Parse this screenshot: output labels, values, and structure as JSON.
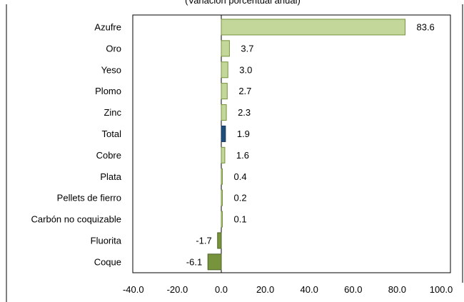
{
  "chart_data": {
    "type": "bar",
    "orientation": "horizontal",
    "title": "(Variación porcentual anual)",
    "categories": [
      "Azufre",
      "Oro",
      "Yeso",
      "Plomo",
      "Zinc",
      "Total",
      "Cobre",
      "Plata",
      "Pellets de fierro",
      "Carbón no coquizable",
      "Fluorita",
      "Coque"
    ],
    "values": [
      83.6,
      3.7,
      3.0,
      2.7,
      2.3,
      1.9,
      1.6,
      0.4,
      0.2,
      0.1,
      -1.7,
      -6.1
    ],
    "value_labels": [
      "83.6",
      "3.7",
      "3.0",
      "2.7",
      "2.3",
      "1.9",
      "1.6",
      "0.4",
      "0.2",
      "0.1",
      "-1.7",
      "-6.1"
    ],
    "xlim": [
      -40,
      100
    ],
    "xticks": [
      -40,
      -20,
      0,
      20,
      40,
      60,
      80,
      100
    ],
    "xtick_labels": [
      "-40.0",
      "-20.0",
      "0.0",
      "20.0",
      "40.0",
      "60.0",
      "80.0",
      "100.0"
    ],
    "xlabel": "",
    "ylabel": "",
    "grid": false,
    "legend": "none",
    "colors": {
      "positive": "#c4d79b",
      "positive_edge": "#76933c",
      "negative": "#77933c",
      "negative_edge": "#4f6228",
      "total": "#1f4e79",
      "total_edge": "#17375e",
      "frame": "#000000"
    }
  }
}
